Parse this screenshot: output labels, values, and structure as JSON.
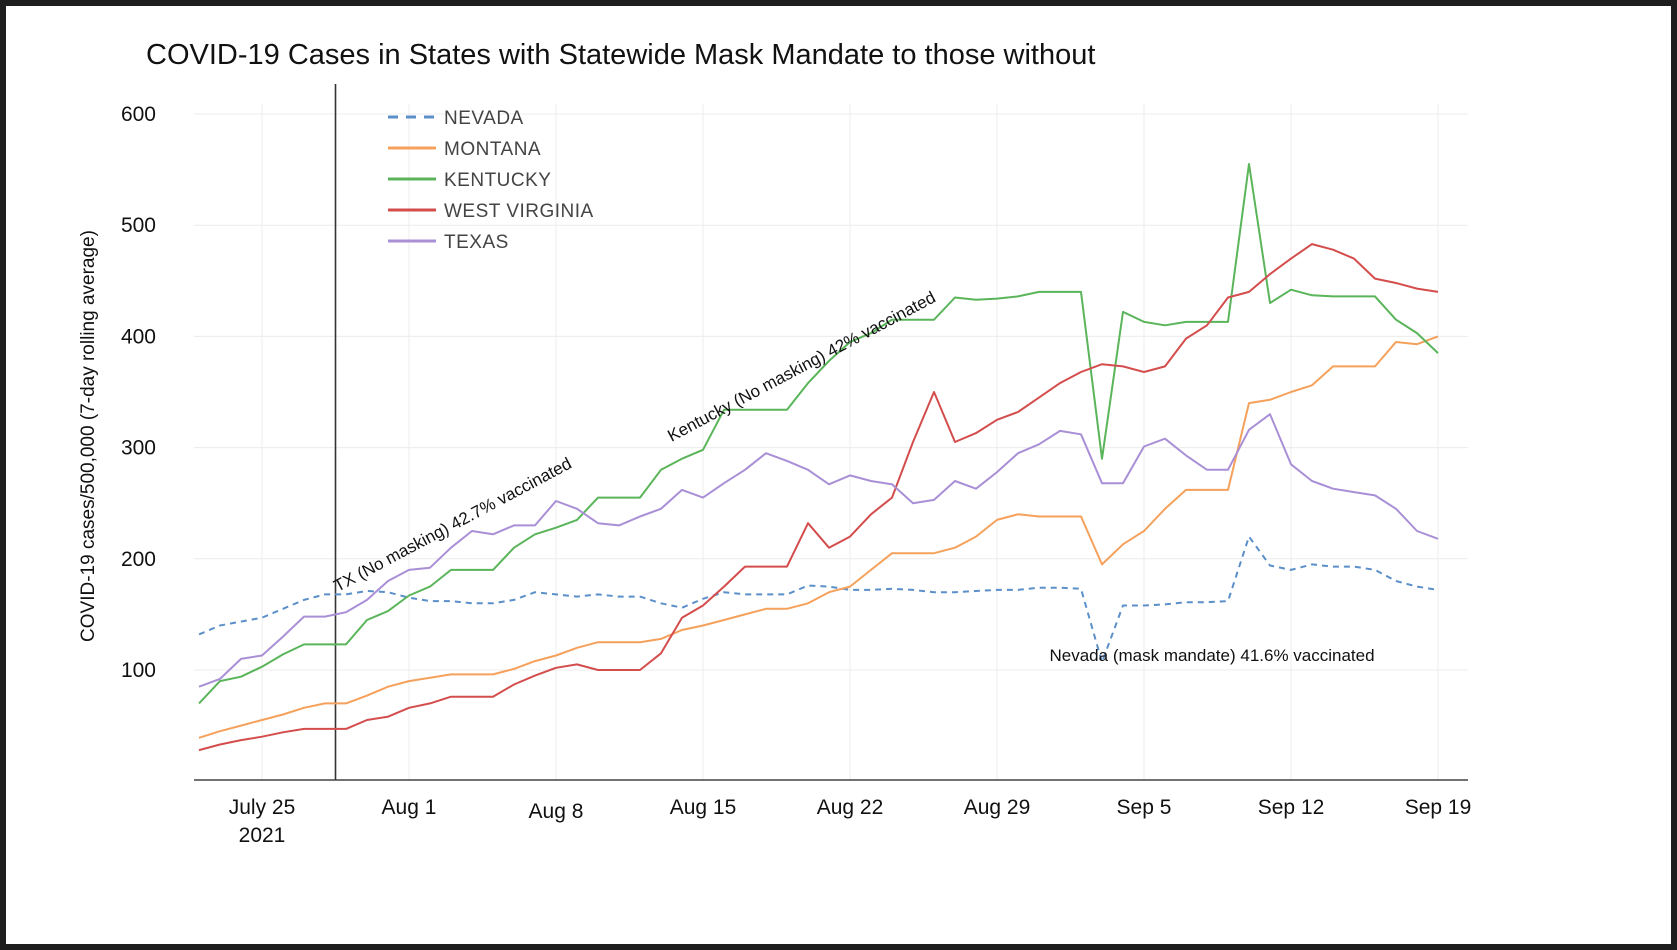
{
  "chart_data": {
    "type": "line",
    "title": "COVID-19 Cases in States with Statewide Mask Mandate to those without",
    "ylabel": "COVID-19 cases/500,000 (7-day rolling average)",
    "xlabel": "",
    "ylim": [
      0,
      600
    ],
    "yticks": [
      100,
      200,
      300,
      400,
      500,
      600
    ],
    "x_day_range": [
      -4,
      63
    ],
    "x_ticks": [
      {
        "label": "July 25",
        "sub": "2021",
        "day": 0
      },
      {
        "label": "Aug 1",
        "sub": "",
        "day": 7
      },
      {
        "label": "Aug 8",
        "sub": "",
        "day": 14
      },
      {
        "label": "Aug 15",
        "sub": "",
        "day": 21
      },
      {
        "label": "Aug 22",
        "sub": "",
        "day": 28
      },
      {
        "label": "Aug 29",
        "sub": "",
        "day": 35
      },
      {
        "label": "Sep 5",
        "sub": "",
        "day": 42
      },
      {
        "label": "Sep 12",
        "sub": "",
        "day": 49
      },
      {
        "label": "Sep 19",
        "sub": "",
        "day": 56
      }
    ],
    "grid": true,
    "legend_position": "top-left",
    "vertical_marker_day": 3.5,
    "series": [
      {
        "name": "NEVADA",
        "color": "#5b8fc9",
        "dash": true,
        "points": [
          [
            -3,
            132
          ],
          [
            -2,
            140
          ],
          [
            0,
            147
          ],
          [
            1,
            155
          ],
          [
            2,
            163
          ],
          [
            3,
            168
          ],
          [
            4,
            168
          ],
          [
            5,
            171
          ],
          [
            6,
            170
          ],
          [
            7,
            165
          ],
          [
            8,
            162
          ],
          [
            9,
            162
          ],
          [
            10,
            160
          ],
          [
            11,
            160
          ],
          [
            12,
            163
          ],
          [
            13,
            170
          ],
          [
            14,
            168
          ],
          [
            15,
            166
          ],
          [
            16,
            168
          ],
          [
            17,
            166
          ],
          [
            18,
            166
          ],
          [
            19,
            160
          ],
          [
            20,
            156
          ],
          [
            21,
            164
          ],
          [
            22,
            170
          ],
          [
            23,
            168
          ],
          [
            24,
            168
          ],
          [
            25,
            168
          ],
          [
            26,
            176
          ],
          [
            27,
            175
          ],
          [
            28,
            172
          ],
          [
            29,
            172
          ],
          [
            30,
            173
          ],
          [
            31,
            172
          ],
          [
            32,
            170
          ],
          [
            33,
            170
          ],
          [
            34,
            171
          ],
          [
            35,
            172
          ],
          [
            36,
            172
          ],
          [
            37,
            174
          ],
          [
            38,
            174
          ],
          [
            39,
            173
          ],
          [
            40,
            107
          ],
          [
            41,
            158
          ],
          [
            42,
            158
          ],
          [
            43,
            159
          ],
          [
            44,
            161
          ],
          [
            45,
            161
          ],
          [
            46,
            162
          ],
          [
            47,
            220
          ],
          [
            48,
            194
          ],
          [
            49,
            190
          ],
          [
            50,
            195
          ],
          [
            51,
            193
          ],
          [
            52,
            193
          ],
          [
            53,
            190
          ],
          [
            54,
            180
          ],
          [
            55,
            175
          ],
          [
            56,
            172
          ]
        ]
      },
      {
        "name": "MONTANA",
        "color": "#f5a15b",
        "dash": false,
        "points": [
          [
            -3,
            39
          ],
          [
            -2,
            45
          ],
          [
            -1,
            50
          ],
          [
            0,
            55
          ],
          [
            1,
            60
          ],
          [
            2,
            66
          ],
          [
            3,
            70
          ],
          [
            4,
            70
          ],
          [
            5,
            77
          ],
          [
            6,
            85
          ],
          [
            7,
            90
          ],
          [
            8,
            93
          ],
          [
            9,
            96
          ],
          [
            10,
            96
          ],
          [
            11,
            96
          ],
          [
            12,
            101
          ],
          [
            13,
            108
          ],
          [
            14,
            113
          ],
          [
            15,
            120
          ],
          [
            16,
            125
          ],
          [
            17,
            125
          ],
          [
            18,
            125
          ],
          [
            19,
            128
          ],
          [
            20,
            136
          ],
          [
            21,
            140
          ],
          [
            22,
            145
          ],
          [
            23,
            150
          ],
          [
            24,
            155
          ],
          [
            25,
            155
          ],
          [
            26,
            160
          ],
          [
            27,
            170
          ],
          [
            28,
            175
          ],
          [
            29,
            190
          ],
          [
            30,
            205
          ],
          [
            31,
            205
          ],
          [
            32,
            205
          ],
          [
            33,
            210
          ],
          [
            34,
            220
          ],
          [
            35,
            235
          ],
          [
            36,
            240
          ],
          [
            37,
            238
          ],
          [
            38,
            238
          ],
          [
            39,
            238
          ],
          [
            40,
            195
          ],
          [
            41,
            213
          ],
          [
            42,
            225
          ],
          [
            43,
            245
          ],
          [
            44,
            262
          ],
          [
            45,
            262
          ],
          [
            46,
            262
          ],
          [
            47,
            340
          ],
          [
            48,
            343
          ],
          [
            49,
            350
          ],
          [
            50,
            356
          ],
          [
            51,
            373
          ],
          [
            52,
            373
          ],
          [
            53,
            373
          ],
          [
            54,
            395
          ],
          [
            55,
            393
          ],
          [
            56,
            400
          ]
        ]
      },
      {
        "name": "KENTUCKY",
        "color": "#5ab55a",
        "dash": false,
        "points": [
          [
            -3,
            70
          ],
          [
            -2,
            90
          ],
          [
            -1,
            94
          ],
          [
            0,
            103
          ],
          [
            1,
            114
          ],
          [
            2,
            123
          ],
          [
            3,
            123
          ],
          [
            4,
            123
          ],
          [
            5,
            145
          ],
          [
            6,
            153
          ],
          [
            7,
            167
          ],
          [
            8,
            175
          ],
          [
            9,
            190
          ],
          [
            10,
            190
          ],
          [
            11,
            190
          ],
          [
            12,
            210
          ],
          [
            13,
            222
          ],
          [
            14,
            228
          ],
          [
            15,
            235
          ],
          [
            16,
            255
          ],
          [
            17,
            255
          ],
          [
            18,
            255
          ],
          [
            19,
            280
          ],
          [
            20,
            290
          ],
          [
            21,
            298
          ],
          [
            22,
            334
          ],
          [
            23,
            334
          ],
          [
            24,
            334
          ],
          [
            25,
            334
          ],
          [
            26,
            358
          ],
          [
            27,
            378
          ],
          [
            28,
            395
          ],
          [
            29,
            403
          ],
          [
            30,
            415
          ],
          [
            31,
            415
          ],
          [
            32,
            415
          ],
          [
            33,
            435
          ],
          [
            34,
            433
          ],
          [
            35,
            434
          ],
          [
            36,
            436
          ],
          [
            37,
            440
          ],
          [
            38,
            440
          ],
          [
            39,
            440
          ],
          [
            40,
            290
          ],
          [
            41,
            422
          ],
          [
            42,
            413
          ],
          [
            43,
            410
          ],
          [
            44,
            413
          ],
          [
            45,
            413
          ],
          [
            46,
            413
          ],
          [
            47,
            555
          ],
          [
            48,
            430
          ],
          [
            49,
            442
          ],
          [
            50,
            437
          ],
          [
            51,
            436
          ],
          [
            52,
            436
          ],
          [
            53,
            436
          ],
          [
            54,
            415
          ],
          [
            55,
            403
          ],
          [
            56,
            385
          ]
        ]
      },
      {
        "name": "WEST VIRGINIA",
        "color": "#d44d4d",
        "dash": false,
        "points": [
          [
            -3,
            28
          ],
          [
            -2,
            33
          ],
          [
            -1,
            37
          ],
          [
            0,
            40
          ],
          [
            1,
            44
          ],
          [
            2,
            47
          ],
          [
            3,
            47
          ],
          [
            4,
            47
          ],
          [
            5,
            55
          ],
          [
            6,
            58
          ],
          [
            7,
            66
          ],
          [
            8,
            70
          ],
          [
            9,
            76
          ],
          [
            10,
            76
          ],
          [
            11,
            76
          ],
          [
            12,
            87
          ],
          [
            13,
            95
          ],
          [
            14,
            102
          ],
          [
            15,
            105
          ],
          [
            16,
            100
          ],
          [
            17,
            100
          ],
          [
            18,
            100
          ],
          [
            19,
            115
          ],
          [
            20,
            147
          ],
          [
            21,
            158
          ],
          [
            22,
            175
          ],
          [
            23,
            193
          ],
          [
            24,
            193
          ],
          [
            25,
            193
          ],
          [
            26,
            232
          ],
          [
            27,
            210
          ],
          [
            28,
            220
          ],
          [
            29,
            240
          ],
          [
            30,
            255
          ],
          [
            31,
            305
          ],
          [
            32,
            350
          ],
          [
            33,
            305
          ],
          [
            34,
            313
          ],
          [
            35,
            325
          ],
          [
            36,
            332
          ],
          [
            37,
            345
          ],
          [
            38,
            358
          ],
          [
            39,
            368
          ],
          [
            40,
            375
          ],
          [
            41,
            373
          ],
          [
            42,
            368
          ],
          [
            43,
            373
          ],
          [
            44,
            398
          ],
          [
            45,
            410
          ],
          [
            46,
            435
          ],
          [
            47,
            440
          ],
          [
            48,
            456
          ],
          [
            49,
            470
          ],
          [
            50,
            483
          ],
          [
            51,
            478
          ],
          [
            52,
            470
          ],
          [
            53,
            452
          ],
          [
            54,
            448
          ],
          [
            55,
            443
          ],
          [
            56,
            440
          ]
        ]
      },
      {
        "name": "TEXAS",
        "color": "#a98fd6",
        "dash": false,
        "points": [
          [
            -3,
            85
          ],
          [
            -2,
            92
          ],
          [
            -1,
            110
          ],
          [
            0,
            113
          ],
          [
            1,
            130
          ],
          [
            2,
            148
          ],
          [
            3,
            148
          ],
          [
            4,
            152
          ],
          [
            5,
            163
          ],
          [
            6,
            180
          ],
          [
            7,
            190
          ],
          [
            8,
            192
          ],
          [
            9,
            210
          ],
          [
            10,
            225
          ],
          [
            11,
            222
          ],
          [
            12,
            230
          ],
          [
            13,
            230
          ],
          [
            14,
            252
          ],
          [
            15,
            245
          ],
          [
            16,
            232
          ],
          [
            17,
            230
          ],
          [
            18,
            238
          ],
          [
            19,
            245
          ],
          [
            20,
            262
          ],
          [
            21,
            255
          ],
          [
            22,
            268
          ],
          [
            23,
            280
          ],
          [
            24,
            295
          ],
          [
            25,
            288
          ],
          [
            26,
            280
          ],
          [
            27,
            267
          ],
          [
            28,
            275
          ],
          [
            29,
            270
          ],
          [
            30,
            267
          ],
          [
            31,
            250
          ],
          [
            32,
            253
          ],
          [
            33,
            270
          ],
          [
            34,
            263
          ],
          [
            35,
            278
          ],
          [
            36,
            295
          ],
          [
            37,
            303
          ],
          [
            38,
            315
          ],
          [
            39,
            312
          ],
          [
            40,
            268
          ],
          [
            41,
            268
          ],
          [
            42,
            301
          ],
          [
            43,
            308
          ],
          [
            44,
            293
          ],
          [
            45,
            280
          ],
          [
            46,
            280
          ],
          [
            47,
            316
          ],
          [
            48,
            330
          ],
          [
            49,
            285
          ],
          [
            50,
            270
          ],
          [
            51,
            263
          ],
          [
            52,
            260
          ],
          [
            53,
            257
          ],
          [
            54,
            245
          ],
          [
            55,
            225
          ],
          [
            56,
            218
          ]
        ]
      }
    ],
    "annotations": [
      {
        "text": "TX (No masking) 42.7% vaccinated",
        "day": 3.6,
        "value": 170,
        "angle": -28
      },
      {
        "text": "Kentucky (No masking) 42% vaccinated",
        "day": 19.5,
        "value": 305,
        "angle": -28
      },
      {
        "text": "Nevada (mask mandate) 41.6% vaccinated",
        "day": 37.5,
        "value": 108,
        "angle": 0
      }
    ]
  }
}
